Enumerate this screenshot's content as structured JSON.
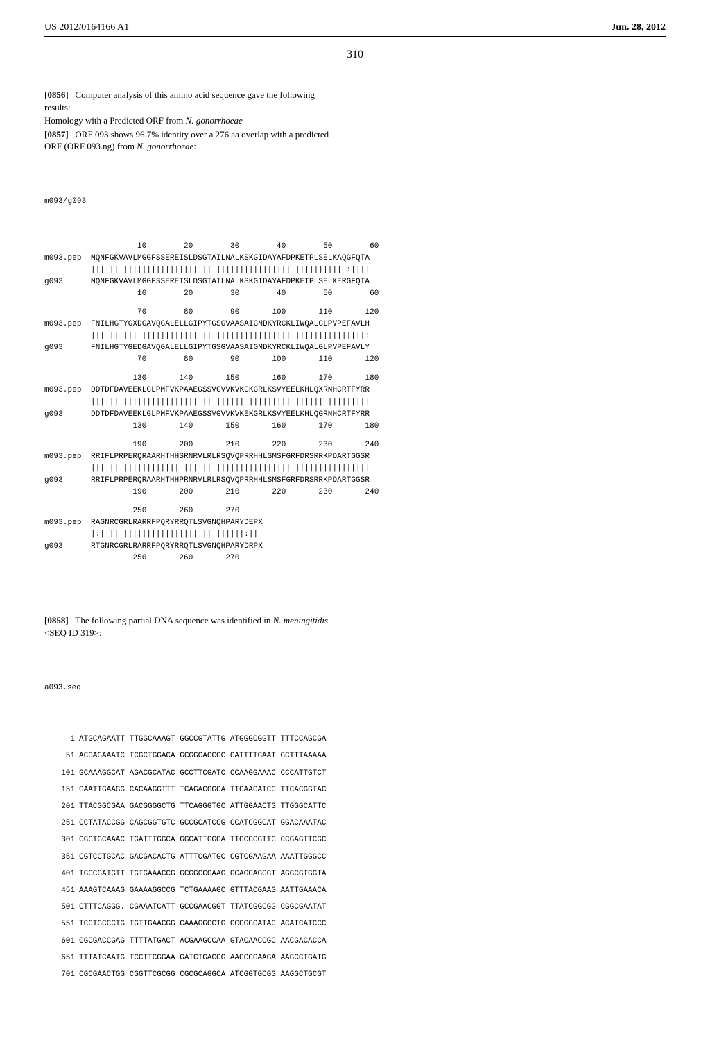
{
  "header": {
    "left": "US 2012/0164166 A1",
    "right": "Jun. 28, 2012"
  },
  "page_number": "310",
  "para_0856": {
    "label": "[0856]",
    "text_before": "Computer analysis of this amino acid sequence gave the following results:",
    "homology_line_prefix": "Homology with a Predicted ORF from ",
    "homology_line_ital": "N. gonorrhoeae"
  },
  "para_0857": {
    "label": "[0857]",
    "text_before": "ORF 093 shows 96.7% identity over a 276 aa overlap with a predicted ORF (ORF 093.ng) from ",
    "ital": "N. gonorrhoeae",
    "text_after": ":"
  },
  "alignment": {
    "title": "m093/g093",
    "label_top": "m093.pep",
    "label_bot": "g093",
    "blocks": [
      {
        "pos_top": "          10        20        30        40        50        60",
        "seq_top": "MQNFGKVAVLMGGFSSEREISLDSGTAILNALKSKGIDAYAFDPKETPLSELKAQGFQTA",
        "match": "|||||||||||||||||||||||||||||||||||||||||||||||||||||| :||||",
        "seq_bot": "MQNFGKVAVLMGGFSSEREISLDSGTAILNALKSKGIDAYAFDPKETPLSELKERGFQTA",
        "pos_bot": "          10        20        30        40        50        60"
      },
      {
        "pos_top": "          70        80        90       100       110       120",
        "seq_top": "FNILHGTYGXDGAVQGALELLGIPYTGSGVAASAIGMDKYRCKLIWQALGLPVPEFAVLH",
        "match": "|||||||||| ||||||||||||||||||||||||||||||||||||||||||||||||:",
        "seq_bot": "FNILHGTYGEDGAVQGALELLGIPYTGSGVAASAIGMDKYRCKLIWQALGLPVPEFAVLY",
        "pos_bot": "          70        80        90       100       110       120"
      },
      {
        "pos_top": "         130       140       150       160       170       180",
        "seq_top": "DDTDFDAVEEKLGLPMFVKPAAEGSSVGVVKVKGKGRLKSVYEELKHLQXRNHCRTFYRR",
        "match": "||||||||||||||||||||||||||||||||| |||||||||||||||| |||||||||",
        "seq_bot": "DDTDFDAVEEKLGLPMFVKPAAEGSSVGVVKVKEKGRLKSVYEELKHLQGRNHCRTFYRR",
        "pos_bot": "         130       140       150       160       170       180"
      },
      {
        "pos_top": "         190       200       210       220       230       240",
        "seq_top": "RRIFLPRPERQRAARHTHHSRNRVLRLRSQVQPRRHHLSMSFGRFDRSRRKPDARTGGSR",
        "match": "||||||||||||||||||| ||||||||||||||||||||||||||||||||||||||||",
        "seq_bot": "RRIFLPRPERQRAARHTHHPRNRVLRLRSQVQPRRHHLSMSFGRFDRSRRKPDARTGGSR",
        "pos_bot": "         190       200       210       220       230       240"
      },
      {
        "pos_top": "         250       260       270",
        "seq_top": "RAGNRCGRLRARRFPQRYRRQTLSVGNQHPARYDEPX",
        "match": "|:|||||||||||||||||||||||||||||||:||",
        "seq_bot": "RTGNRCGRLRARRFPQRYRRQTLSVGNQHPARYDRPX",
        "pos_bot": "         250       260       270"
      }
    ]
  },
  "para_0858": {
    "label": "[0858]",
    "text_before": "The following partial DNA sequence was identified in ",
    "ital": "N. meningitidis",
    "text_after": " <SEQ ID 319>:"
  },
  "dna": {
    "title": "a093.seq",
    "lines": [
      {
        "num": "1",
        "seq": "ATGCAGAATT TTGGCAAAGT GGCCGTATTG ATGGGCGGTT TTTCCAGCGA"
      },
      {
        "num": "51",
        "seq": "ACGAGAAATC TCGCTGGACA GCGGCACCGC CATTTTGAAT GCTTTAAAAA"
      },
      {
        "num": "101",
        "seq": "GCAAAGGCAT AGACGCATAC GCCTTCGATC CCAAGGAAAC CCCATTGTCT"
      },
      {
        "num": "151",
        "seq": "GAATTGAAGG CACAAGGTTT TCAGACGGCA TTCAACATCC TTCACGGTAC"
      },
      {
        "num": "201",
        "seq": "TTACGGCGAA GACGGGGCTG TTCAGGGTGC ATTGGAACTG TTGGGCATTC"
      },
      {
        "num": "251",
        "seq": "CCTATACCGG CAGCGGTGTC GCCGCATCCG CCATCGGCAT GGACAAATAC"
      },
      {
        "num": "301",
        "seq": "CGCTGCAAAC TGATTTGGCA GGCATTGGGA TTGCCCGTTC CCGAGTTCGC"
      },
      {
        "num": "351",
        "seq": "CGTCCTGCAC GACGACACTG ATTTCGATGC CGTCGAAGAA AAATTGGGCC"
      },
      {
        "num": "401",
        "seq": "TGCCGATGTT TGTGAAACCG GCGGCCGAAG GCAGCAGCGT AGGCGTGGTA"
      },
      {
        "num": "451",
        "seq": "AAAGTCAAAG GAAAAGGCCG TCTGAAAAGC GTTTACGAAG AATTGAAACA"
      },
      {
        "num": "501",
        "seq": "CTTTCAGGG. CGAAATCATT GCCGAACGGT TTATCGGCGG CGGCGAATAT"
      },
      {
        "num": "551",
        "seq": "TCCTGCCCTG TGTTGAACGG CAAAGGCCTG CCCGGCATAC ACATCATCCC"
      },
      {
        "num": "601",
        "seq": "CGCGACCGAG TTTTATGACT ACGAAGCCAA GTACAACCGC AACGACACCA"
      },
      {
        "num": "651",
        "seq": "TTTATCAATG TCCTTCGGAA GATCTGACCG AAGCCGAAGA AAGCCTGATG"
      },
      {
        "num": "701",
        "seq": "CGCGAACTGG CGGTTCGCGG CGCGCAGGCA ATCGGTGCGG AAGGCTGCGT"
      }
    ]
  }
}
